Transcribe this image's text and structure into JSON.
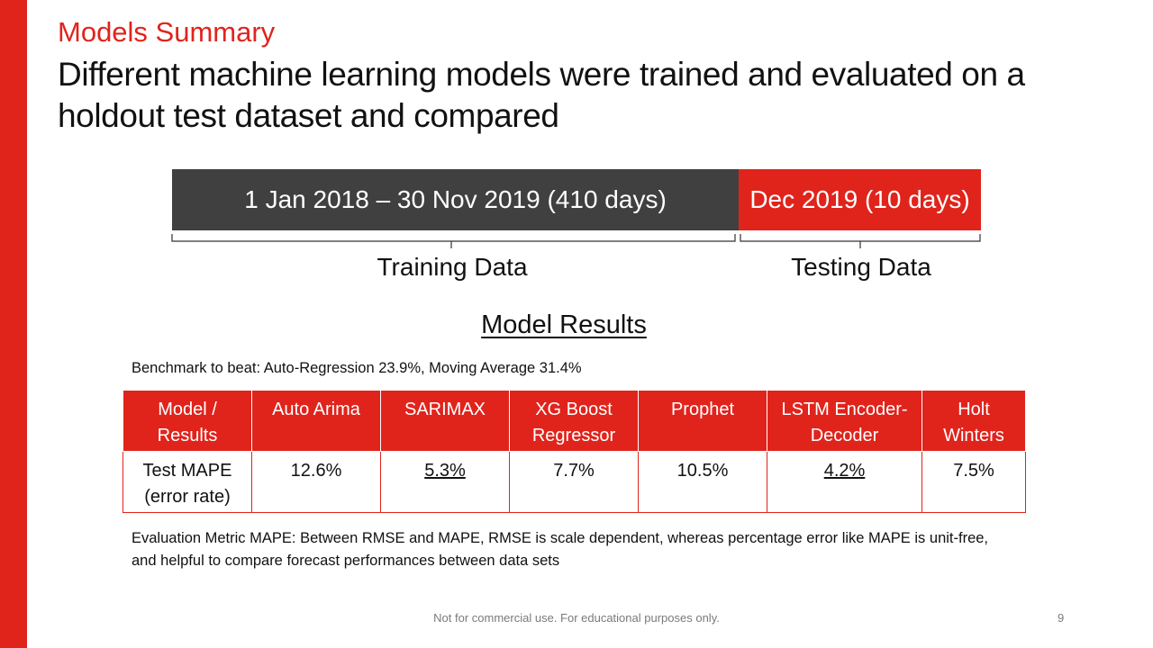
{
  "slide": {
    "kicker": "Models Summary",
    "headline": "Different machine learning models were trained and evaluated on a holdout test dataset and compared",
    "accent_color": "#e0241c",
    "dark_color": "#404040"
  },
  "timeline": {
    "training_period": "1 Jan 2018 – 30 Nov 2019 (410 days)",
    "testing_period": "Dec 2019 (10 days)",
    "training_label": "Training Data",
    "testing_label": "Testing Data"
  },
  "results": {
    "title": "Model Results",
    "benchmark": "Benchmark to beat: Auto-Regression 23.9%, Moving Average 31.4%",
    "headers": [
      "Model / Results",
      "Auto Arima",
      "SARIMAX",
      "XG Boost Regressor",
      "Prophet",
      "LSTM Encoder-Decoder",
      "Holt Winters"
    ],
    "row": {
      "label": "Test MAPE (error rate)",
      "values": [
        "12.6%",
        "5.3%",
        "7.7%",
        "10.5%",
        "4.2%",
        "7.5%"
      ],
      "underlined": [
        "5.3%",
        "4.2%"
      ]
    },
    "note": "Evaluation Metric MAPE: Between RMSE and MAPE, RMSE is scale dependent,  whereas percentage  error like MAPE is unit-free, and helpful to compare forecast performances between data sets"
  },
  "footer": {
    "disclaimer": "Not for commercial use. For educational purposes only.",
    "page_number": "9"
  }
}
